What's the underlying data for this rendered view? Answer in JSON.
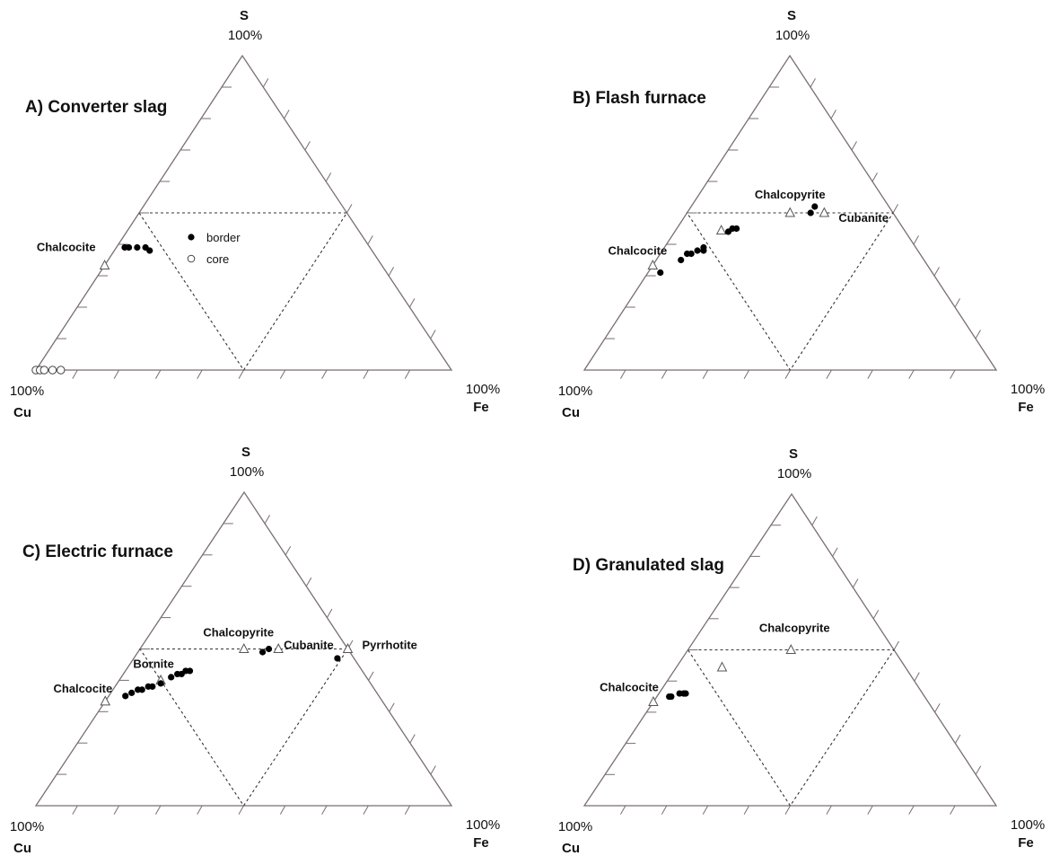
{
  "chart_data": [
    {
      "type": "scatter",
      "subtype": "ternary",
      "title": "A) Converter slag",
      "apices": {
        "top": {
          "label": "S",
          "percent": "100%"
        },
        "left": {
          "label": "Cu",
          "percent": "100%"
        },
        "right": {
          "label": "Fe",
          "percent": "100%"
        }
      },
      "ticks_per_edge": 10,
      "reference_triangle": "dotted",
      "legend": {
        "placement": "center",
        "entries": [
          {
            "label": "border",
            "marker": "filled-circle"
          },
          {
            "label": "core",
            "marker": "open-circle"
          }
        ]
      },
      "minerals": [
        {
          "label": "Chalcocite",
          "fe": 0.0,
          "s": 0.333
        }
      ],
      "series": [
        {
          "marker": "filled-circle",
          "points": [
            {
              "fe": 0.02,
              "s": 0.39
            },
            {
              "fe": 0.03,
              "s": 0.39
            },
            {
              "fe": 0.05,
              "s": 0.39
            },
            {
              "fe": 0.07,
              "s": 0.39
            },
            {
              "fe": 0.085,
              "s": 0.38
            }
          ]
        },
        {
          "marker": "open-circle",
          "points": [
            {
              "fe": 0.0,
              "s": 0.0
            },
            {
              "fe": 0.01,
              "s": 0.0
            },
            {
              "fe": 0.02,
              "s": 0.0
            },
            {
              "fe": 0.04,
              "s": 0.0
            },
            {
              "fe": 0.06,
              "s": 0.0
            }
          ]
        }
      ]
    },
    {
      "type": "scatter",
      "subtype": "ternary",
      "title": "B) Flash furnace",
      "apices": {
        "top": {
          "label": "S",
          "percent": "100%"
        },
        "left": {
          "label": "Cu",
          "percent": "100%"
        },
        "right": {
          "label": "Fe",
          "percent": "100%"
        }
      },
      "ticks_per_edge": 10,
      "reference_triangle": "dotted",
      "minerals": [
        {
          "label": "Chalcocite",
          "fe": 0.0,
          "s": 0.333
        },
        {
          "label": "",
          "fe": 0.111,
          "s": 0.444
        },
        {
          "label": "Chalcopyrite",
          "fe": 0.25,
          "s": 0.5
        },
        {
          "label": "Cubanite",
          "fe": 0.333,
          "s": 0.5
        }
      ],
      "series": [
        {
          "marker": "filled-circle",
          "points": [
            {
              "fe": 0.03,
              "s": 0.31
            },
            {
              "fe": 0.06,
              "s": 0.35
            },
            {
              "fe": 0.065,
              "s": 0.37
            },
            {
              "fe": 0.075,
              "s": 0.37
            },
            {
              "fe": 0.085,
              "s": 0.38
            },
            {
              "fe": 0.095,
              "s": 0.39
            },
            {
              "fe": 0.1,
              "s": 0.38
            },
            {
              "fe": 0.13,
              "s": 0.44
            },
            {
              "fe": 0.135,
              "s": 0.45
            },
            {
              "fe": 0.145,
              "s": 0.45
            },
            {
              "fe": 0.3,
              "s": 0.5
            },
            {
              "fe": 0.3,
              "s": 0.52
            }
          ]
        }
      ]
    },
    {
      "type": "scatter",
      "subtype": "ternary",
      "title": "C) Electric furnace",
      "apices": {
        "top": {
          "label": "S",
          "percent": "100%"
        },
        "left": {
          "label": "Cu",
          "percent": "100%"
        },
        "right": {
          "label": "Fe",
          "percent": "100%"
        }
      },
      "ticks_per_edge": 10,
      "reference_triangle": "dotted",
      "minerals": [
        {
          "label": "Chalcocite",
          "fe": 0.0,
          "s": 0.333
        },
        {
          "label": "Bornite",
          "fe": 0.1,
          "s": 0.4
        },
        {
          "label": "Chalcopyrite",
          "fe": 0.25,
          "s": 0.5
        },
        {
          "label": "Cubanite",
          "fe": 0.333,
          "s": 0.5
        },
        {
          "label": "Pyrrhotite",
          "fe": 0.5,
          "s": 0.5
        }
      ],
      "series": [
        {
          "marker": "filled-circle",
          "points": [
            {
              "fe": 0.04,
              "s": 0.35
            },
            {
              "fe": 0.05,
              "s": 0.36
            },
            {
              "fe": 0.06,
              "s": 0.37
            },
            {
              "fe": 0.07,
              "s": 0.37
            },
            {
              "fe": 0.08,
              "s": 0.38
            },
            {
              "fe": 0.09,
              "s": 0.38
            },
            {
              "fe": 0.105,
              "s": 0.39
            },
            {
              "fe": 0.12,
              "s": 0.41
            },
            {
              "fe": 0.13,
              "s": 0.42
            },
            {
              "fe": 0.14,
              "s": 0.42
            },
            {
              "fe": 0.145,
              "s": 0.43
            },
            {
              "fe": 0.155,
              "s": 0.43
            },
            {
              "fe": 0.3,
              "s": 0.49
            },
            {
              "fe": 0.31,
              "s": 0.5
            },
            {
              "fe": 0.49,
              "s": 0.47
            }
          ]
        }
      ]
    },
    {
      "type": "scatter",
      "subtype": "ternary",
      "title": "D) Granulated slag",
      "apices": {
        "top": {
          "label": "S",
          "percent": "100%"
        },
        "left": {
          "label": "Cu",
          "percent": "100%"
        },
        "right": {
          "label": "Fe",
          "percent": "100%"
        }
      },
      "ticks_per_edge": 10,
      "reference_triangle": "dotted",
      "minerals": [
        {
          "label": "Chalcocite",
          "fe": 0.0,
          "s": 0.333
        },
        {
          "label": "",
          "fe": 0.111,
          "s": 0.444
        },
        {
          "label": "Chalcopyrite",
          "fe": 0.25,
          "s": 0.5
        }
      ],
      "series": [
        {
          "marker": "filled-circle",
          "points": [
            {
              "fe": 0.03,
              "s": 0.35
            },
            {
              "fe": 0.035,
              "s": 0.35
            },
            {
              "fe": 0.05,
              "s": 0.36
            },
            {
              "fe": 0.06,
              "s": 0.36
            },
            {
              "fe": 0.065,
              "s": 0.36
            }
          ]
        }
      ]
    }
  ]
}
